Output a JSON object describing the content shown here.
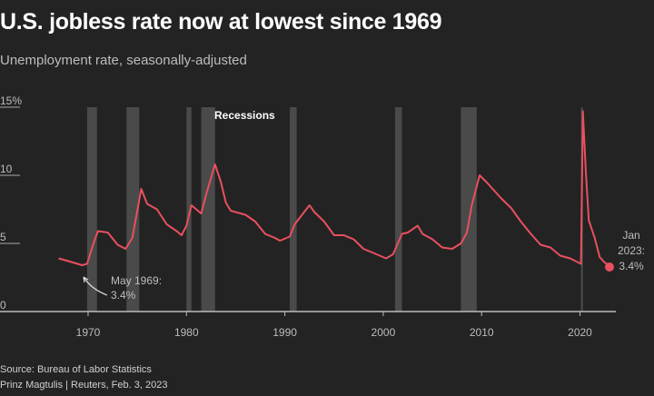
{
  "title": "U.S. jobless rate now at lowest since 1969",
  "subtitle": "Unemployment rate, seasonally-adjusted",
  "source": "Source: Bureau of Labor Statistics",
  "credit": "Prinz Magtulis | Reuters, Feb. 3, 2023",
  "chart_data": {
    "type": "line",
    "title": "U.S. jobless rate now at lowest since 1969",
    "ylabel": "",
    "xlabel": "",
    "ylim": [
      0,
      15
    ],
    "xlim": [
      1967,
      2023
    ],
    "y_ticks": [
      {
        "value": 0,
        "label": "0"
      },
      {
        "value": 5,
        "label": "5"
      },
      {
        "value": 10,
        "label": "10"
      },
      {
        "value": 15,
        "label": "15%"
      }
    ],
    "x_ticks": [
      {
        "value": 1970,
        "label": "1970"
      },
      {
        "value": 1980,
        "label": "1980"
      },
      {
        "value": 1990,
        "label": "1990"
      },
      {
        "value": 2000,
        "label": "2000"
      },
      {
        "value": 2010,
        "label": "2010"
      },
      {
        "value": 2020,
        "label": "2020"
      }
    ],
    "grid": "y-tick underlines only",
    "line_color": "#e8505f",
    "recession_color": "#4a4a4a",
    "recession_label": "Recessions",
    "recessions": [
      [
        1969.9,
        1970.9
      ],
      [
        1973.9,
        1975.2
      ],
      [
        1980.0,
        1980.5
      ],
      [
        1981.5,
        1982.9
      ],
      [
        1990.5,
        1991.2
      ],
      [
        2001.2,
        2001.9
      ],
      [
        2007.9,
        2009.5
      ],
      [
        2020.1,
        2020.3
      ]
    ],
    "x": [
      1967.0,
      1968.0,
      1969.4,
      1969.9,
      1970.5,
      1971.0,
      1972.0,
      1973.0,
      1973.8,
      1974.5,
      1975.4,
      1976.0,
      1976.5,
      1977.0,
      1978.0,
      1979.0,
      1979.5,
      1980.0,
      1980.5,
      1981.0,
      1981.5,
      1982.0,
      1982.9,
      1983.5,
      1984.0,
      1984.5,
      1985.0,
      1986.0,
      1987.0,
      1988.0,
      1989.0,
      1989.5,
      1990.5,
      1991.0,
      1992.5,
      1993.0,
      1994.0,
      1995.0,
      1996.0,
      1997.0,
      1998.0,
      1999.0,
      2000.3,
      2001.0,
      2001.9,
      2002.5,
      2003.5,
      2004.0,
      2005.0,
      2006.0,
      2007.0,
      2007.9,
      2008.5,
      2009.0,
      2009.8,
      2010.5,
      2011.0,
      2012.0,
      2013.0,
      2014.0,
      2015.0,
      2016.0,
      2017.0,
      2018.0,
      2019.0,
      2020.1,
      2020.3,
      2020.6,
      2020.9,
      2021.5,
      2022.0,
      2022.5,
      2023.0
    ],
    "values": [
      3.9,
      3.7,
      3.4,
      3.5,
      4.9,
      5.9,
      5.8,
      4.9,
      4.6,
      5.4,
      9.0,
      7.9,
      7.7,
      7.5,
      6.4,
      5.9,
      5.6,
      6.3,
      7.8,
      7.5,
      7.2,
      8.6,
      10.8,
      9.5,
      8.0,
      7.4,
      7.3,
      7.1,
      6.6,
      5.7,
      5.4,
      5.2,
      5.5,
      6.4,
      7.8,
      7.3,
      6.6,
      5.6,
      5.6,
      5.3,
      4.6,
      4.3,
      3.9,
      4.2,
      5.7,
      5.8,
      6.3,
      5.7,
      5.3,
      4.7,
      4.6,
      5.0,
      5.8,
      7.8,
      10.0,
      9.5,
      9.1,
      8.3,
      7.6,
      6.6,
      5.7,
      4.9,
      4.7,
      4.1,
      3.9,
      3.5,
      14.7,
      10.2,
      6.7,
      5.4,
      4.0,
      3.6,
      3.4
    ],
    "annotations": [
      {
        "x": 1969.4,
        "y": 3.4,
        "lines": [
          "May 1969:",
          "3.4%"
        ]
      },
      {
        "x": 2023.0,
        "y": 3.4,
        "lines": [
          "Jan",
          "2023:",
          "3.4%"
        ]
      }
    ]
  }
}
